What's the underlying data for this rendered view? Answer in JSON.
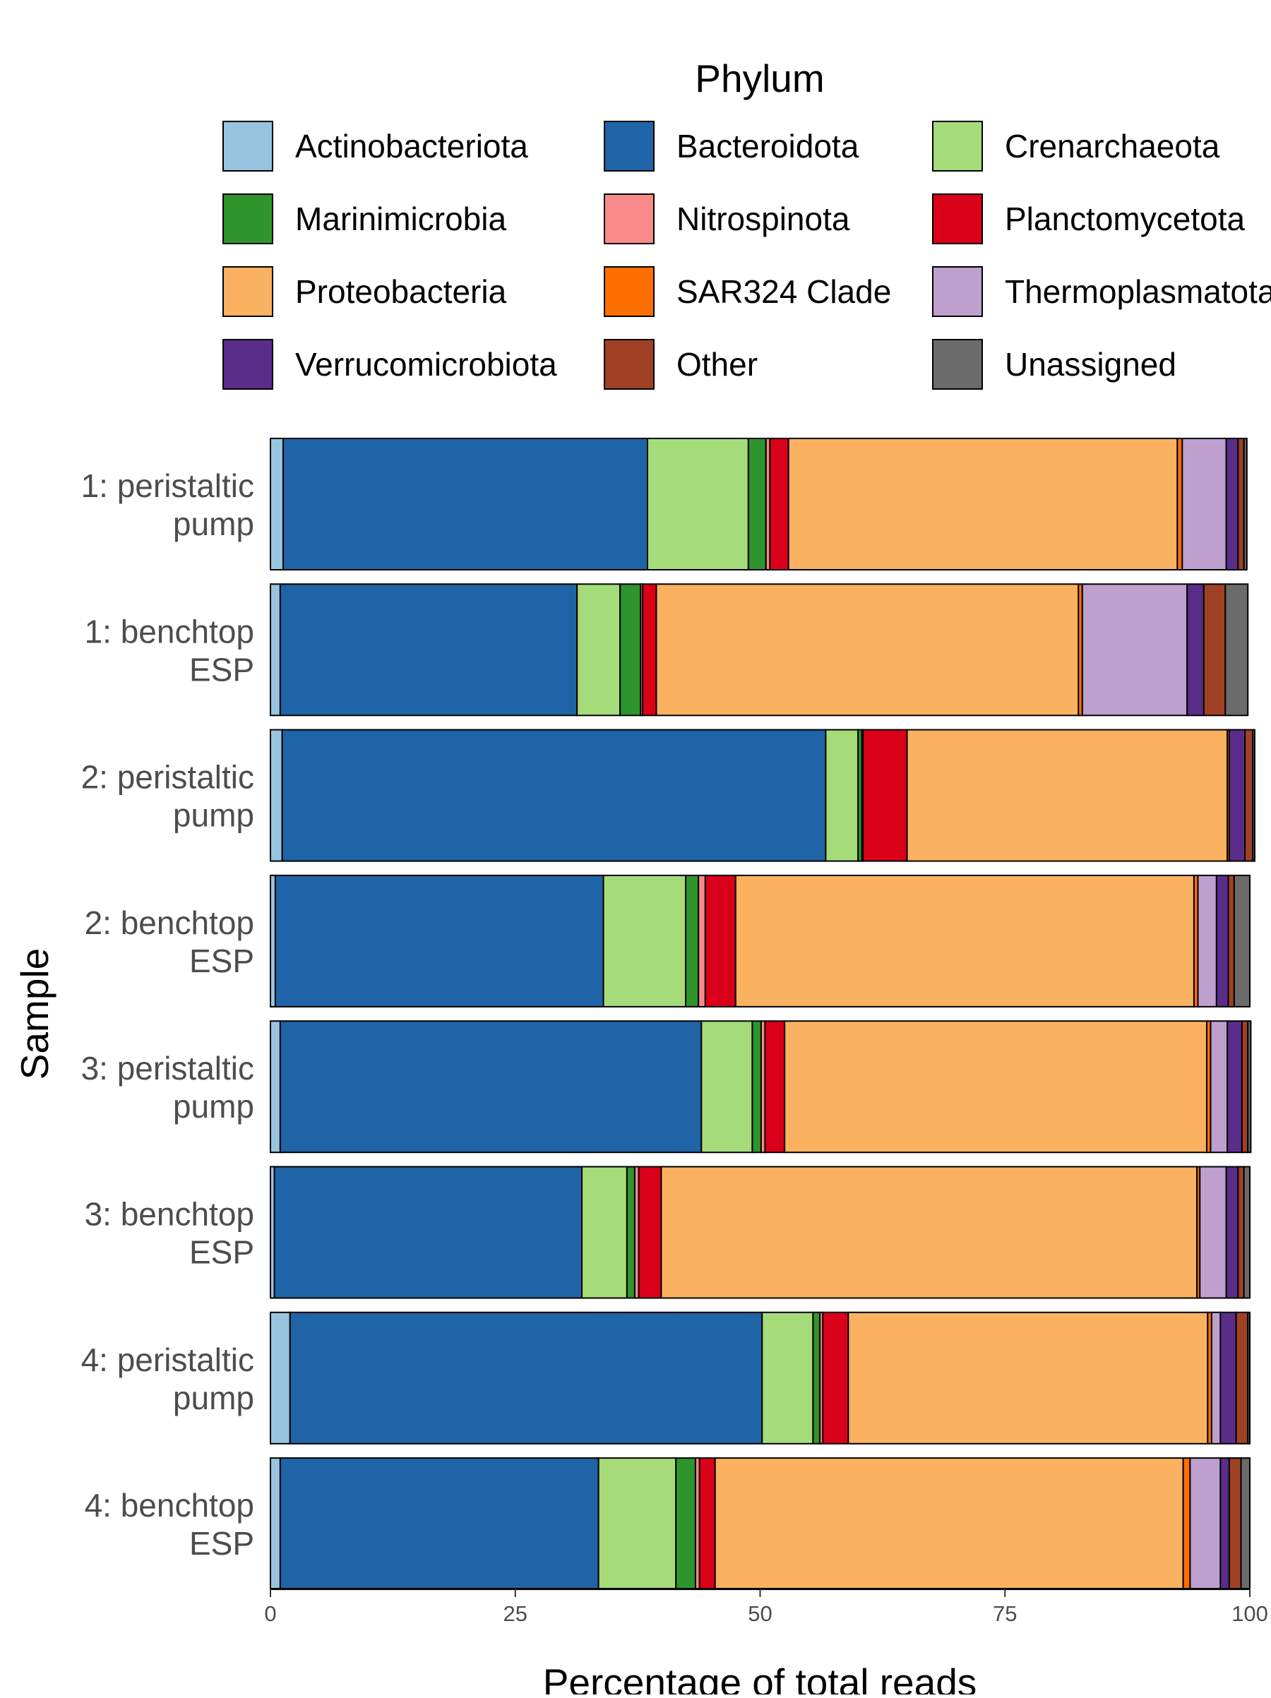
{
  "chart_data": {
    "type": "bar",
    "orientation": "horizontal",
    "stacked": true,
    "xlabel": "Percentage of total reads",
    "ylabel": "Sample",
    "xlim": [
      0,
      100
    ],
    "xticks": [
      0,
      25,
      50,
      75,
      100
    ],
    "grid": false,
    "legend": {
      "title": "Phylum",
      "position": "top",
      "columns": 3
    },
    "categories": [
      "1: peristaltic\npump",
      "1: benchtop\nESP",
      "2: peristaltic\npump",
      "2: benchtop\nESP",
      "3: peristaltic\npump",
      "3: benchtop\nESP",
      "4: peristaltic\npump",
      "4: benchtop\nESP"
    ],
    "series": [
      {
        "name": "Actinobacteriota",
        "color": "#99C4DF",
        "values": [
          1.3,
          1.0,
          1.2,
          0.5,
          1.0,
          0.4,
          2.0,
          1.0
        ]
      },
      {
        "name": "Bacteroidota",
        "color": "#1F64A6",
        "values": [
          37.2,
          30.3,
          55.5,
          33.5,
          43.0,
          31.4,
          48.2,
          32.5
        ]
      },
      {
        "name": "Crenarchaeota",
        "color": "#A6DB7A",
        "values": [
          10.3,
          4.4,
          3.3,
          8.4,
          5.2,
          4.6,
          5.2,
          7.9
        ]
      },
      {
        "name": "Marinimicrobia",
        "color": "#2E942C",
        "values": [
          1.8,
          2.1,
          0.4,
          1.3,
          0.9,
          0.8,
          0.7,
          2.0
        ]
      },
      {
        "name": "Nitrospinota",
        "color": "#F88A89",
        "values": [
          0.4,
          0.2,
          0.1,
          0.7,
          0.4,
          0.4,
          0.3,
          0.4
        ]
      },
      {
        "name": "Planctomycetota",
        "color": "#DB001A",
        "values": [
          1.9,
          1.4,
          4.5,
          3.1,
          2.0,
          2.3,
          2.6,
          1.6
        ]
      },
      {
        "name": "Proteobacteria",
        "color": "#FAB260",
        "values": [
          39.7,
          43.1,
          32.7,
          46.8,
          43.1,
          54.7,
          36.7,
          47.8
        ]
      },
      {
        "name": "SAR324 Clade",
        "color": "#FD6F03",
        "values": [
          0.5,
          0.4,
          0.2,
          0.4,
          0.4,
          0.3,
          0.4,
          0.7
        ]
      },
      {
        "name": "Thermoplasmatota",
        "color": "#BE9FCE",
        "values": [
          4.5,
          10.7,
          0.0,
          1.9,
          1.7,
          2.7,
          0.9,
          3.1
        ]
      },
      {
        "name": "Verrucomicrobiota",
        "color": "#5A2D8B",
        "values": [
          1.2,
          1.7,
          1.6,
          1.2,
          1.5,
          1.2,
          1.6,
          0.9
        ]
      },
      {
        "name": "Other",
        "color": "#9F4124",
        "values": [
          0.6,
          2.2,
          0.8,
          0.6,
          0.6,
          0.6,
          1.2,
          1.2
        ]
      },
      {
        "name": "Unassigned",
        "color": "#6B6B6B",
        "values": [
          0.3,
          2.3,
          0.2,
          1.6,
          0.3,
          0.6,
          0.2,
          0.9
        ]
      }
    ]
  }
}
